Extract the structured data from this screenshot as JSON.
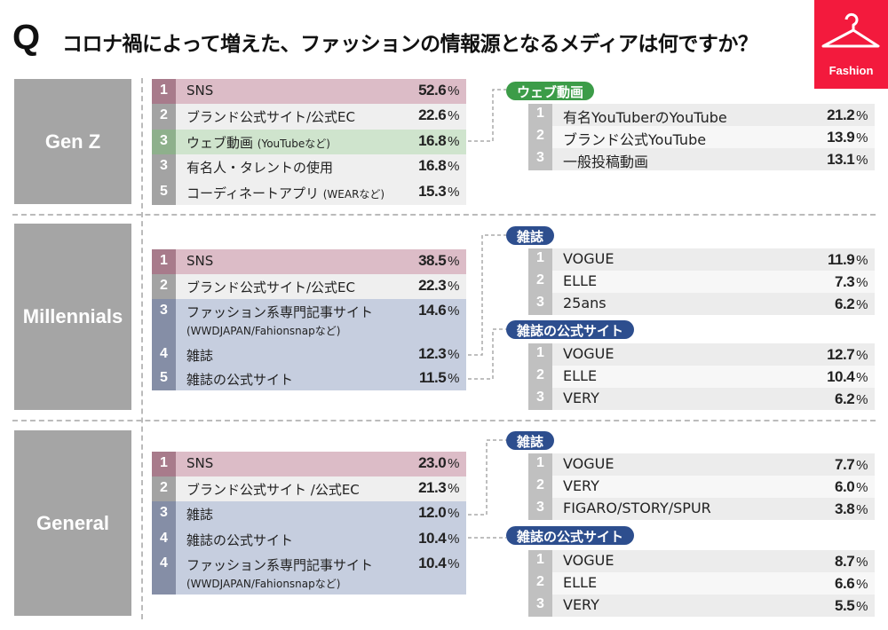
{
  "title": {
    "q": "Q",
    "text": "コロナ禍によって増えた、ファッションの情報源となるメディアは何ですか？"
  },
  "logo": {
    "label": "Fashion",
    "icon": "hanger-icon",
    "color": "#f31a3d"
  },
  "colors": {
    "top": "#dcbcc7",
    "default": "#efefef",
    "web_video": "#cfe4cd",
    "magazine": "#c6cedf",
    "badge_green": "#3c9c48",
    "badge_blue": "#2d4e8e"
  },
  "percent_unit": "%",
  "sections": [
    {
      "segment": "Gen Z",
      "items": [
        {
          "rank": "1",
          "label": "SNS",
          "value": "52.6",
          "style": "pink"
        },
        {
          "rank": "2",
          "label": "ブランド公式サイト/公式EC",
          "value": "22.6",
          "style": "gray"
        },
        {
          "rank": "3",
          "label": "ウェブ動画",
          "note": "(YouTubeなど)",
          "value": "16.8",
          "style": "green"
        },
        {
          "rank": "3",
          "label": "有名人・タレントの使用",
          "value": "16.8",
          "style": "gray"
        },
        {
          "rank": "5",
          "label": "コーディネートアプリ",
          "note": "(WEARなど)",
          "value": "15.3",
          "style": "gray"
        }
      ],
      "breakdowns": [
        {
          "title": "ウェブ動画",
          "color": "green",
          "items": [
            {
              "rank": "1",
              "label": "有名YouTuberのYouTube",
              "value": "21.2"
            },
            {
              "rank": "2",
              "label": "ブランド公式YouTube",
              "value": "13.9"
            },
            {
              "rank": "3",
              "label": "一般投稿動画",
              "value": "13.1"
            }
          ]
        }
      ]
    },
    {
      "segment": "Millennials",
      "items": [
        {
          "rank": "1",
          "label": "SNS",
          "value": "38.5",
          "style": "pink"
        },
        {
          "rank": "2",
          "label": "ブランド公式サイト/公式EC",
          "value": "22.3",
          "style": "gray"
        },
        {
          "rank": "3",
          "label": "ファッション系専門記事サイト",
          "sub": "(WWDJAPAN/Fahionsnapなど)",
          "value": "14.6",
          "style": "blue"
        },
        {
          "rank": "4",
          "label": "雑誌",
          "value": "12.3",
          "style": "blue"
        },
        {
          "rank": "5",
          "label": "雑誌の公式サイト",
          "value": "11.5",
          "style": "blue"
        }
      ],
      "breakdowns": [
        {
          "title": "雑誌",
          "color": "blue",
          "items": [
            {
              "rank": "1",
              "label": "VOGUE",
              "value": "11.9"
            },
            {
              "rank": "2",
              "label": "ELLE",
              "value": "7.3"
            },
            {
              "rank": "3",
              "label": "25ans",
              "value": "6.2"
            }
          ]
        },
        {
          "title": "雑誌の公式サイト",
          "color": "blue",
          "items": [
            {
              "rank": "1",
              "label": "VOGUE",
              "value": "12.7"
            },
            {
              "rank": "2",
              "label": "ELLE",
              "value": "10.4"
            },
            {
              "rank": "3",
              "label": "VERY",
              "value": "6.2"
            }
          ]
        }
      ]
    },
    {
      "segment": "General",
      "items": [
        {
          "rank": "1",
          "label": "SNS",
          "value": "23.0",
          "style": "pink"
        },
        {
          "rank": "2",
          "label": "ブランド公式サイト /公式EC",
          "value": "21.3",
          "style": "gray"
        },
        {
          "rank": "3",
          "label": "雑誌",
          "value": "12.0",
          "style": "blue"
        },
        {
          "rank": "4",
          "label": "雑誌の公式サイト",
          "value": "10.4",
          "style": "blue"
        },
        {
          "rank": "4",
          "label": "ファッション系専門記事サイト",
          "sub": "(WWDJAPAN/Fahionsnapなど)",
          "value": "10.4",
          "style": "blue"
        }
      ],
      "breakdowns": [
        {
          "title": "雑誌",
          "color": "blue",
          "items": [
            {
              "rank": "1",
              "label": "VOGUE",
              "value": "7.7"
            },
            {
              "rank": "2",
              "label": "VERY",
              "value": "6.0"
            },
            {
              "rank": "3",
              "label": "FIGARO/STORY/SPUR",
              "value": "3.8"
            }
          ]
        },
        {
          "title": "雑誌の公式サイト",
          "color": "blue",
          "items": [
            {
              "rank": "1",
              "label": "VOGUE",
              "value": "8.7"
            },
            {
              "rank": "2",
              "label": "ELLE",
              "value": "6.6"
            },
            {
              "rank": "3",
              "label": "VERY",
              "value": "5.5"
            }
          ]
        }
      ]
    }
  ]
}
